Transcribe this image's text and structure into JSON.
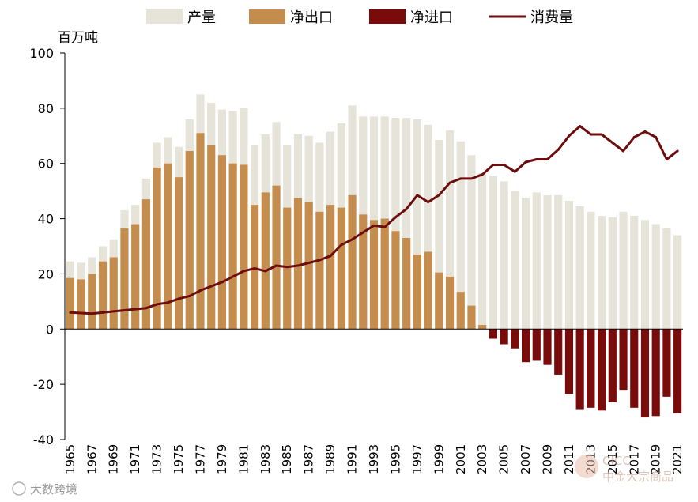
{
  "chart_data": {
    "type": "bar",
    "title": "",
    "unit_label": "百万吨",
    "ylim": [
      -40,
      100
    ],
    "yticks": [
      "100",
      "80",
      "60",
      "40",
      "20",
      "0",
      "-20",
      "-40"
    ],
    "ytick_values": [
      100,
      80,
      60,
      40,
      20,
      0,
      -20,
      -40
    ],
    "legend": [
      "产量",
      "净出口",
      "净进口",
      "消费量"
    ],
    "colors": {
      "production": "#e6e3d8",
      "net_export": "#c48d4d",
      "net_import": "#7a0b0b",
      "consumption": "#6e0d0d"
    },
    "categories": [
      "1965",
      "1966",
      "1967",
      "1968",
      "1969",
      "1970",
      "1971",
      "1972",
      "1973",
      "1974",
      "1975",
      "1976",
      "1977",
      "1978",
      "1979",
      "1980",
      "1981",
      "1982",
      "1983",
      "1984",
      "1985",
      "1986",
      "1987",
      "1988",
      "1989",
      "1990",
      "1991",
      "1992",
      "1993",
      "1994",
      "1995",
      "1996",
      "1997",
      "1998",
      "1999",
      "2000",
      "2001",
      "2002",
      "2003",
      "2004",
      "2005",
      "2006",
      "2007",
      "2008",
      "2009",
      "2010",
      "2011",
      "2012",
      "2013",
      "2014",
      "2015",
      "2016",
      "2017",
      "2018",
      "2019",
      "2020",
      "2021"
    ],
    "xtick_labels": [
      "1965",
      "1967",
      "1969",
      "1971",
      "1973",
      "1975",
      "1977",
      "1979",
      "1981",
      "1983",
      "1985",
      "1987",
      "1989",
      "1991",
      "1993",
      "1995",
      "1997",
      "1999",
      "2001",
      "2003",
      "2005",
      "2007",
      "2009",
      "2011",
      "2013",
      "2015",
      "2017",
      "2019",
      "2021"
    ],
    "series": [
      {
        "name": "产量",
        "values": [
          24.5,
          24,
          26,
          30,
          32.5,
          43,
          45,
          54.5,
          67.5,
          69.5,
          66,
          76,
          85,
          82,
          79.5,
          79,
          80,
          66.5,
          70.5,
          75,
          66.5,
          70.5,
          70,
          67.5,
          71.5,
          74.5,
          81,
          77,
          77,
          77,
          76.5,
          76.5,
          76,
          74,
          68.5,
          72,
          68,
          63,
          56.5,
          55.5,
          53.5,
          50,
          47.5,
          49.5,
          48.5,
          48.5,
          46.5,
          44.5,
          42.5,
          41,
          40.5,
          42.5,
          41,
          39.5,
          38,
          36.5,
          34
        ]
      },
      {
        "name": "净出口",
        "values": [
          18.5,
          18,
          20,
          24.5,
          26,
          36.5,
          38,
          47,
          58.5,
          60,
          55,
          64.5,
          71,
          66.5,
          63,
          60,
          59.5,
          45,
          49.5,
          52,
          44,
          47.5,
          46,
          42.5,
          45,
          44,
          48.5,
          41.5,
          39.5,
          40,
          35.5,
          33,
          27,
          28,
          20.5,
          19,
          13.5,
          8.5,
          1.5,
          0,
          0,
          0,
          0,
          0,
          0,
          0,
          0,
          0,
          0,
          0,
          0,
          0,
          0,
          0,
          0,
          0,
          0
        ]
      },
      {
        "name": "净进口",
        "values": [
          0,
          0,
          0,
          0,
          0,
          0,
          0,
          0,
          0,
          0,
          0,
          0,
          0,
          0,
          0,
          0,
          0,
          0,
          0,
          0,
          0,
          0,
          0,
          0,
          0,
          0,
          0,
          0,
          0,
          0,
          0,
          0,
          0,
          0,
          0,
          0,
          0,
          0,
          0,
          -3.5,
          -5.5,
          -7,
          -12,
          -11.5,
          -13,
          -16.5,
          -23.5,
          -29,
          -28.5,
          -29.5,
          -26.5,
          -22,
          -28.5,
          -32,
          -31.5,
          -24.5,
          -30.5
        ]
      },
      {
        "name": "消费量",
        "values": [
          6,
          5.8,
          5.6,
          6,
          6.4,
          6.8,
          7.2,
          7.6,
          9,
          9.6,
          11,
          12,
          14,
          15.5,
          17,
          19,
          21,
          22,
          21,
          23,
          22.5,
          23,
          24,
          25,
          26.5,
          30.5,
          32.5,
          35,
          37.5,
          37,
          40.5,
          43.5,
          48.5,
          46,
          48.5,
          53,
          54.5,
          54.5,
          56,
          59.5,
          59.5,
          57,
          60.5,
          61.5,
          61.5,
          65,
          70,
          73.5,
          70.5,
          70.5,
          67.5,
          64.5,
          69.5,
          71.5,
          69.5,
          61.5,
          64.5
        ]
      }
    ]
  },
  "watermark": {
    "left_text": "大数跨境",
    "right_text_top": "CICC",
    "right_text_bottom": "中金大宗商品"
  }
}
